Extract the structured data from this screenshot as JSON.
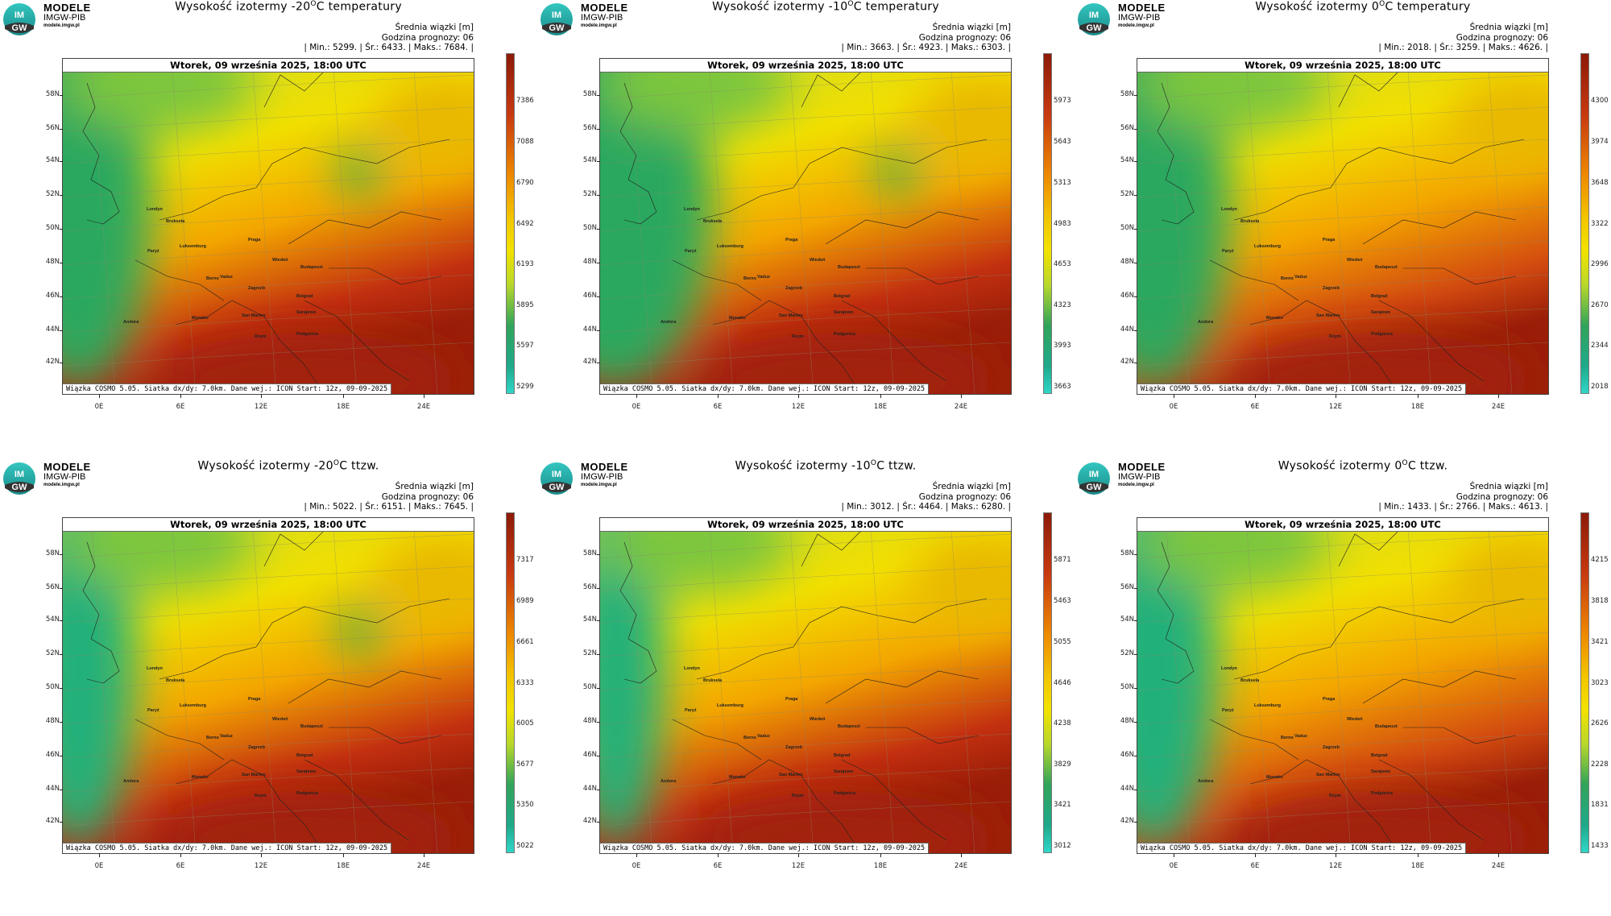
{
  "logo": {
    "line1": "MODELE",
    "line2": "IMGW-PIB",
    "line3": "modele.imgw.pl",
    "badge_top": "IM",
    "badge_bottom": "GW"
  },
  "meta_labels": {
    "mean_beam": "Średnia wiązki [m]",
    "forecast_hour": "Godzina prognozy: 06"
  },
  "date_text": "Wtorek, 09 września 2025, 18:00 UTC",
  "source_text": "Wiązka COSMO 5.05. Siatka dx/dy: 7.0km. Dane wej.: ICON Start: 12z, 09-09-2025",
  "lat_labels": [
    "58N",
    "56N",
    "54N",
    "52N",
    "50N",
    "48N",
    "46N",
    "44N",
    "42N"
  ],
  "lon_labels": [
    "0E",
    "6E",
    "12E",
    "18E",
    "24E"
  ],
  "cities": [
    "Londyn",
    "Bruksela",
    "Paryż",
    "Luksemburg",
    "Praga",
    "Wiedeń",
    "Budapeszt",
    "Berno",
    "Vaduz",
    "Zagrzeb",
    "Belgrad",
    "Monako",
    "San Marino",
    "Sarajewo",
    "Andora",
    "Rzym",
    "Podgorica"
  ],
  "colors": {
    "low": "#2fd6c8",
    "mid": "#f2e200",
    "high": "#8c1a08"
  },
  "panels": [
    {
      "title_pre": "Wysokość izotermy -20",
      "title_sup": "O",
      "title_post": "C temperatury",
      "stats": "| Min.:  5299. | Śr.:  6433. | Maks.:  7684. |",
      "colorbar_labels": [
        "7386",
        "7088",
        "6790",
        "6492",
        "6193",
        "5895",
        "5597",
        "5299"
      ]
    },
    {
      "title_pre": "Wysokość izotermy -10",
      "title_sup": "O",
      "title_post": "C temperatury",
      "stats": "| Min.:  3663. | Śr.:  4923. | Maks.:  6303. |",
      "colorbar_labels": [
        "5973",
        "5643",
        "5313",
        "4983",
        "4653",
        "4323",
        "3993",
        "3663"
      ]
    },
    {
      "title_pre": "Wysokość izotermy 0",
      "title_sup": "O",
      "title_post": "C temperatury",
      "stats": "| Min.:  2018. | Śr.:  3259. | Maks.:  4626. |",
      "colorbar_labels": [
        "4300",
        "3974",
        "3648",
        "3322",
        "2996",
        "2670",
        "2344",
        "2018"
      ]
    },
    {
      "title_pre": "Wysokość izotermy -20",
      "title_sup": "O",
      "title_post": "C ttzw.",
      "stats": "| Min.:  5022. | Śr.:  6151. | Maks.:  7645. |",
      "colorbar_labels": [
        "7317",
        "6989",
        "6661",
        "6333",
        "6005",
        "5677",
        "5350",
        "5022"
      ]
    },
    {
      "title_pre": "Wysokość izotermy -10",
      "title_sup": "O",
      "title_post": "C ttzw.",
      "stats": "| Min.:  3012. | Śr.:  4464. | Maks.:  6280. |",
      "colorbar_labels": [
        "5871",
        "5463",
        "5055",
        "4646",
        "4238",
        "3829",
        "3421",
        "3012"
      ]
    },
    {
      "title_pre": "Wysokość izotermy 0",
      "title_sup": "O",
      "title_post": "C ttzw.",
      "stats": "| Min.:  1433. | Śr.:  2766. | Maks.:  4613. |",
      "colorbar_labels": [
        "4215",
        "3818",
        "3421",
        "3023",
        "2626",
        "2228",
        "1831",
        "1433"
      ]
    }
  ]
}
